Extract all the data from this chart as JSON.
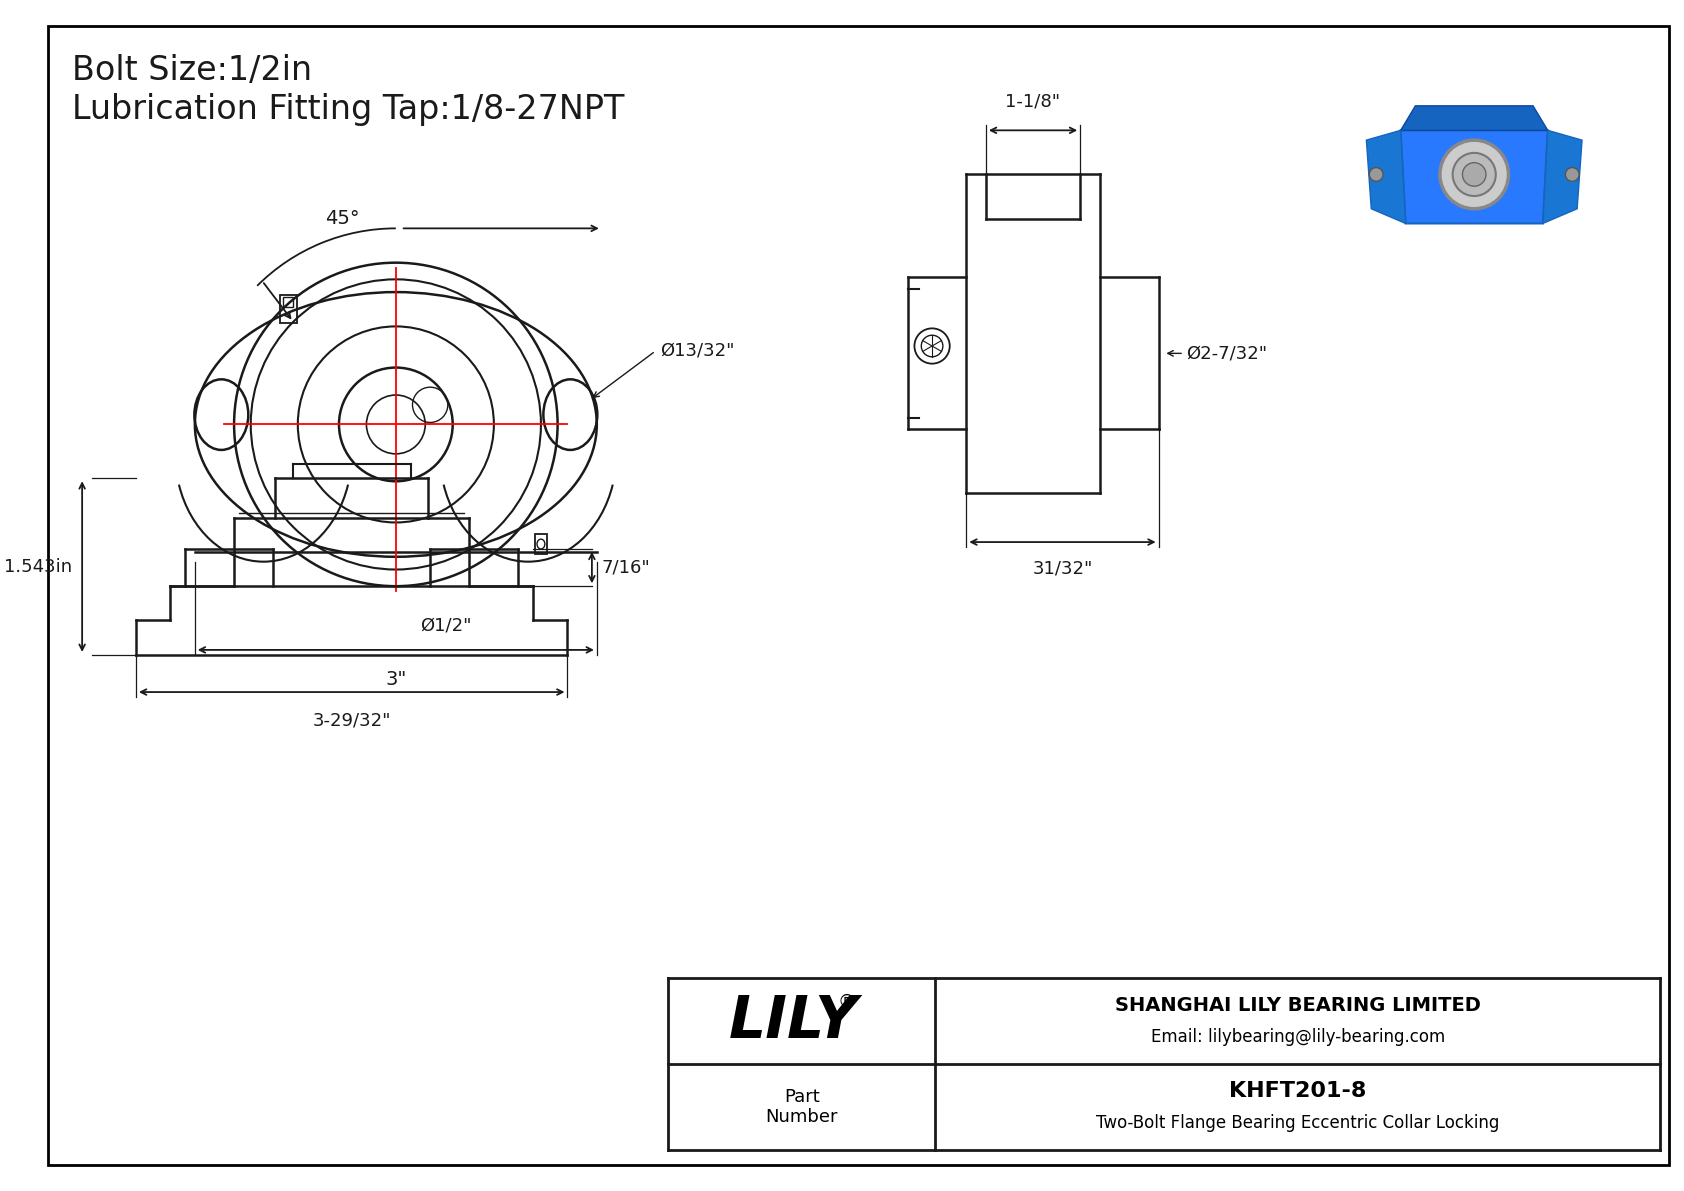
{
  "bg_color": "#ffffff",
  "border_color": "#000000",
  "line_color": "#1a1a1a",
  "red_color": "#ff0000",
  "title_line1": "Bolt Size:1/2in",
  "title_line2": "Lubrication Fitting Tap:1/8-27NPT",
  "title_fontsize": 24,
  "company": "SHANGHAI LILY BEARING LIMITED",
  "email": "Email: lilybearing@lily-bearing.com",
  "part_label": "Part\nNumber",
  "part_number": "KHFT201-8",
  "part_desc": "Two-Bolt Flange Bearing Eccentric Collar Locking",
  "lily_text": "LILY",
  "lily_reg": "®",
  "dim_45": "45°",
  "dim_phi_13_32": "Ø13/32\"",
  "dim_phi_1_2": "Ø1/2\"",
  "dim_3": "3\"",
  "dim_1_1_8": "1-1/8\"",
  "dim_phi_2_7_32": "Ø2-7/32\"",
  "dim_31_32": "31/32\"",
  "dim_1_543": "1.543in",
  "dim_7_16": "7/16\"",
  "dim_3_29_32": "3-29/32\""
}
